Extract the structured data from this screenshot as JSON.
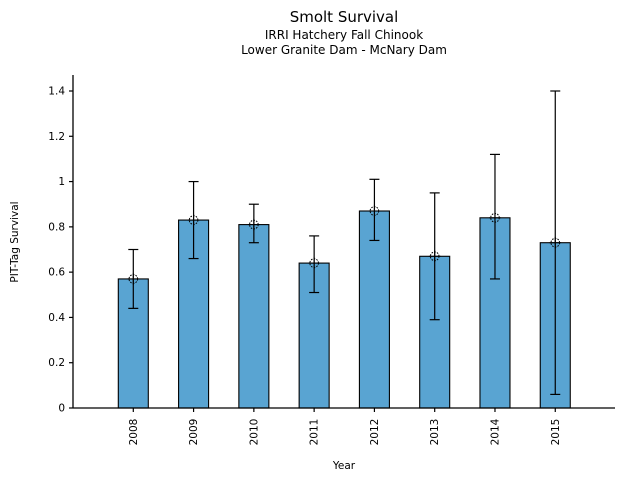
{
  "chart_data": {
    "type": "bar",
    "title": "Smolt Survival",
    "subtitle1": "IRRI Hatchery Fall Chinook",
    "subtitle2": "Lower Granite Dam - McNary Dam",
    "xlabel": "Year",
    "ylabel": "PIT-Tag Survival",
    "categories": [
      "2008",
      "2009",
      "2010",
      "2011",
      "2012",
      "2013",
      "2014",
      "2015"
    ],
    "values": [
      0.57,
      0.83,
      0.81,
      0.64,
      0.87,
      0.67,
      0.84,
      0.73
    ],
    "error_low": [
      0.44,
      0.66,
      0.73,
      0.51,
      0.74,
      0.39,
      0.57,
      0.06
    ],
    "error_high": [
      0.7,
      1.0,
      0.9,
      0.76,
      1.01,
      0.95,
      1.12,
      1.4
    ],
    "ylim": [
      0,
      1.45
    ],
    "ytick_labels": [
      "0",
      "0.2",
      "0.4",
      "0.6",
      "0.8",
      "1",
      "1.2",
      "1.4"
    ],
    "ytick_values": [
      0,
      0.2,
      0.4,
      0.6,
      0.8,
      1.0,
      1.2,
      1.4
    ],
    "grid": "off",
    "legend": "none",
    "marker": "dotted-circle-plus",
    "bar_color": "#59a4d2",
    "bar_edge_color": "#000000",
    "error_bar_color": "#000000",
    "axis_color": "#000000"
  }
}
